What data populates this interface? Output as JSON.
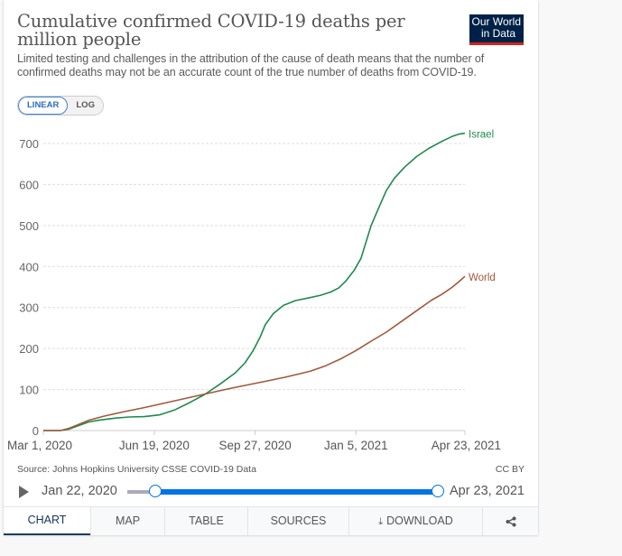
{
  "header": {
    "title": "Cumulative confirmed COVID-19 deaths per million people",
    "subtitle": "Limited testing and challenges in the attribution of the cause of death means that the number of confirmed deaths may not be an accurate count of the true number of deaths from COVID-19.",
    "logo_line1": "Our World",
    "logo_line2": "in Data"
  },
  "scale_toggle": {
    "linear": "LINEAR",
    "log": "LOG",
    "selected": "LINEAR"
  },
  "chart_data": {
    "type": "line",
    "title": "Cumulative confirmed COVID-19 deaths per million people",
    "xlabel": "",
    "ylabel": "",
    "x_start": "2020-03-01",
    "x_end": "2021-04-23",
    "x_ticks": [
      "Mar 1, 2020",
      "Jun 19, 2020",
      "Sep 27, 2020",
      "Jan 5, 2021",
      "Apr 23, 2021"
    ],
    "x_tick_days": [
      0,
      110,
      210,
      310,
      418
    ],
    "y_ticks": [
      0,
      100,
      200,
      300,
      400,
      500,
      600,
      700
    ],
    "ylim": [
      0,
      700
    ],
    "grid": true,
    "legend": "inline-right",
    "series": [
      {
        "name": "Israel",
        "color": "#1f8a4c",
        "points": [
          [
            0,
            0
          ],
          [
            17,
            0
          ],
          [
            25,
            3
          ],
          [
            35,
            12
          ],
          [
            45,
            21
          ],
          [
            55,
            25
          ],
          [
            70,
            30
          ],
          [
            85,
            33
          ],
          [
            100,
            34
          ],
          [
            115,
            38
          ],
          [
            130,
            50
          ],
          [
            145,
            68
          ],
          [
            160,
            88
          ],
          [
            175,
            113
          ],
          [
            190,
            140
          ],
          [
            200,
            165
          ],
          [
            208,
            195
          ],
          [
            215,
            228
          ],
          [
            220,
            258
          ],
          [
            228,
            285
          ],
          [
            238,
            305
          ],
          [
            250,
            317
          ],
          [
            262,
            323
          ],
          [
            275,
            330
          ],
          [
            285,
            338
          ],
          [
            293,
            348
          ],
          [
            300,
            365
          ],
          [
            308,
            390
          ],
          [
            315,
            420
          ],
          [
            320,
            460
          ],
          [
            325,
            500
          ],
          [
            332,
            540
          ],
          [
            340,
            585
          ],
          [
            348,
            615
          ],
          [
            358,
            642
          ],
          [
            370,
            668
          ],
          [
            382,
            688
          ],
          [
            395,
            705
          ],
          [
            405,
            717
          ],
          [
            412,
            723
          ],
          [
            418,
            725
          ]
        ]
      },
      {
        "name": "World",
        "color": "#a2583a",
        "points": [
          [
            0,
            0
          ],
          [
            17,
            0
          ],
          [
            25,
            5
          ],
          [
            35,
            15
          ],
          [
            45,
            25
          ],
          [
            60,
            35
          ],
          [
            80,
            46
          ],
          [
            100,
            56
          ],
          [
            120,
            67
          ],
          [
            140,
            78
          ],
          [
            160,
            89
          ],
          [
            180,
            100
          ],
          [
            200,
            110
          ],
          [
            220,
            120
          ],
          [
            240,
            130
          ],
          [
            255,
            139
          ],
          [
            265,
            145
          ],
          [
            280,
            158
          ],
          [
            295,
            175
          ],
          [
            310,
            195
          ],
          [
            325,
            218
          ],
          [
            340,
            240
          ],
          [
            355,
            266
          ],
          [
            370,
            292
          ],
          [
            385,
            318
          ],
          [
            395,
            332
          ],
          [
            405,
            349
          ],
          [
            412,
            363
          ],
          [
            418,
            376
          ]
        ]
      }
    ]
  },
  "footer": {
    "source": "Source: Johns Hopkins University CSSE COVID-19 Data",
    "license": "CC BY"
  },
  "timeline": {
    "start_label": "Jan 22, 2020",
    "end_label": "Apr 23, 2021",
    "range_start_fraction": 0.07,
    "range_end_fraction": 1.0
  },
  "tabs": [
    {
      "label": "CHART",
      "active": true
    },
    {
      "label": "MAP",
      "active": false
    },
    {
      "label": "TABLE",
      "active": false
    },
    {
      "label": "SOURCES",
      "active": false
    },
    {
      "label": "DOWNLOAD",
      "active": false
    },
    {
      "label": "",
      "active": false
    }
  ],
  "colors": {
    "accent": "#0073e6",
    "israel": "#1f8a4c",
    "world": "#a2583a",
    "logo_bg": "#002147",
    "logo_bar": "#ce261e"
  }
}
